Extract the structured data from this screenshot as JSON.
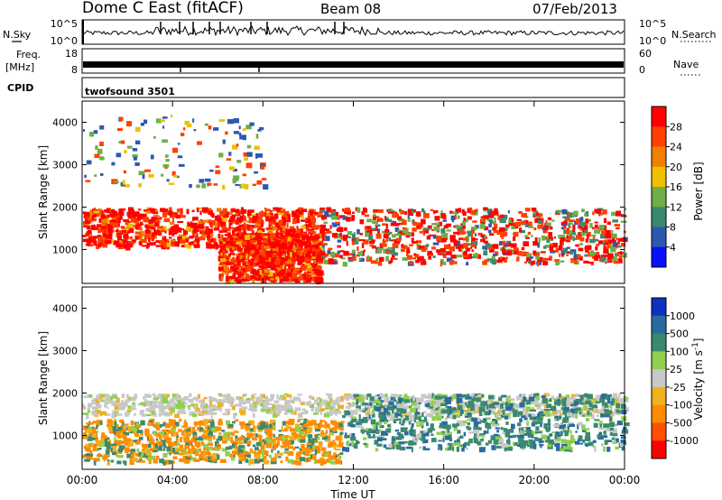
{
  "header": {
    "station": "Dome C East (fitACF)",
    "beam": "Beam 08",
    "date": "07/Feb/2013"
  },
  "colors": {
    "axis": "#000000",
    "power_scale": [
      "#0a10ff",
      "#2c58b0",
      "#3a8a6e",
      "#6fae48",
      "#f0c000",
      "#f08000",
      "#ff4000",
      "#ff0000"
    ],
    "velocity_scale": [
      "#ff0000",
      "#ff5000",
      "#ff8c00",
      "#f0b020",
      "#c8c8c8",
      "#90d050",
      "#3a8a6e",
      "#2a6aa0",
      "#1030c0"
    ]
  },
  "panels": {
    "nsky": {
      "label": "N.Sky",
      "left_ticks": [
        "10^5",
        "10^0"
      ],
      "right_ticks": [
        "10^5",
        "10^0"
      ],
      "right_label": "N.Search"
    },
    "freq": {
      "label_line1": "Freq.",
      "label_line2": "[MHz]",
      "left_ticks": [
        "18",
        "8"
      ],
      "right_ticks": [
        "60",
        "0"
      ],
      "right_label": "Nave"
    },
    "cpid": {
      "label": "CPID",
      "value": "twofsound 3501"
    }
  },
  "chart_data": [
    {
      "type": "heatmap",
      "title": "",
      "xlabel": "Time UT",
      "ylabel": "Slant Range [km]",
      "x_ticks": [
        "00:00",
        "04:00",
        "08:00",
        "12:00",
        "16:00",
        "20:00",
        "00:00"
      ],
      "y_ticks": [
        1000,
        2000,
        3000,
        4000
      ],
      "ylim": [
        200,
        4500
      ],
      "colorbar": {
        "label": "Power [dB]",
        "ticks": [
          "28",
          "24",
          "20",
          "16",
          "12",
          "8",
          "4"
        ]
      },
      "regions": [
        {
          "t0": 0.0,
          "t1": 10.5,
          "r0": 1100,
          "r1": 2000,
          "level": "high"
        },
        {
          "t0": 6.0,
          "t1": 10.5,
          "r0": 300,
          "r1": 1400,
          "level": "high"
        },
        {
          "t0": 10.5,
          "t1": 24.0,
          "r0": 700,
          "r1": 2000,
          "level": "medium"
        },
        {
          "t0": 0.0,
          "t1": 8.0,
          "r0": 2500,
          "r1": 4200,
          "level": "sparse"
        }
      ]
    },
    {
      "type": "heatmap",
      "title": "",
      "xlabel": "Time UT",
      "ylabel": "Slant Range [km]",
      "x_ticks": [
        "00:00",
        "04:00",
        "08:00",
        "12:00",
        "16:00",
        "20:00",
        "00:00"
      ],
      "y_ticks": [
        1000,
        2000,
        3000,
        4000
      ],
      "ylim": [
        200,
        4500
      ],
      "colorbar": {
        "label": "Velocity [m s^-1]",
        "ticks": [
          "1000",
          "500",
          "100",
          "25",
          "-25",
          "-100",
          "-500",
          "-1000"
        ]
      },
      "regions": [
        {
          "t0": 0.0,
          "t1": 24.0,
          "r0": 1500,
          "r1": 2000,
          "level": "near-zero"
        },
        {
          "t0": 0.0,
          "t1": 11.5,
          "r0": 400,
          "r1": 1400,
          "level": "negative"
        },
        {
          "t0": 11.5,
          "t1": 24.0,
          "r0": 700,
          "r1": 2000,
          "level": "positive"
        }
      ]
    }
  ]
}
